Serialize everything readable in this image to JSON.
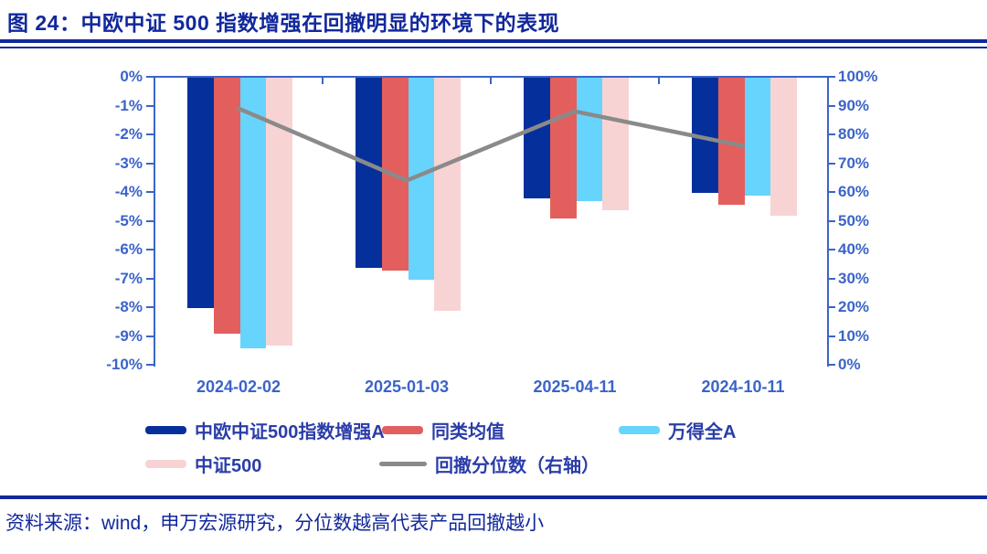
{
  "title": "图 24：中欧中证 500 指数增强在回撤明显的环境下的表现",
  "footer": {
    "source": "资料来源：wind，申万宏源研究，分位数越高代表产品回撤越小"
  },
  "colors": {
    "navy": "#12289C",
    "axis_blue": "#3B64C8",
    "bar_dark_blue": "#05309C",
    "bar_red": "#E25F5E",
    "bar_sky_blue": "#66D4FC",
    "bar_pink": "#F8D3D4",
    "line_gray": "#8A8A8A"
  },
  "chart_data": {
    "type": "bar",
    "subtype": "grouped bars with overlay line on secondary axis",
    "categories": [
      "2024-02-02",
      "2025-01-03",
      "2025-04-11",
      "2024-10-11"
    ],
    "series": [
      {
        "name": "中欧中证500指数增强A",
        "type": "bar",
        "axis": "left",
        "color": "#05309C",
        "values": [
          -8.0,
          -6.6,
          -4.2,
          -4.0
        ]
      },
      {
        "name": "同类均值",
        "type": "bar",
        "axis": "left",
        "color": "#E25F5E",
        "values": [
          -8.9,
          -6.7,
          -4.9,
          -4.4
        ]
      },
      {
        "name": "万得全A",
        "type": "bar",
        "axis": "left",
        "color": "#66D4FC",
        "values": [
          -9.4,
          -7.0,
          -4.3,
          -4.1
        ]
      },
      {
        "name": "中证500",
        "type": "bar",
        "axis": "left",
        "color": "#F8D3D4",
        "values": [
          -9.3,
          -8.1,
          -4.6,
          -4.8
        ]
      },
      {
        "name": "回撤分位数（右轴）",
        "type": "line",
        "axis": "right",
        "color": "#8A8A8A",
        "values": [
          89,
          64,
          88,
          76
        ]
      }
    ],
    "left_axis": {
      "unit": "%",
      "min": -10,
      "max": 0,
      "ticks": [
        "0%",
        "-1%",
        "-2%",
        "-3%",
        "-4%",
        "-5%",
        "-6%",
        "-7%",
        "-8%",
        "-9%",
        "-10%"
      ]
    },
    "right_axis": {
      "unit": "%",
      "min": 0,
      "max": 100,
      "ticks": [
        "100%",
        "90%",
        "80%",
        "70%",
        "60%",
        "50%",
        "40%",
        "30%",
        "20%",
        "10%",
        "0%"
      ]
    },
    "grid": false,
    "legend_position": "bottom"
  }
}
